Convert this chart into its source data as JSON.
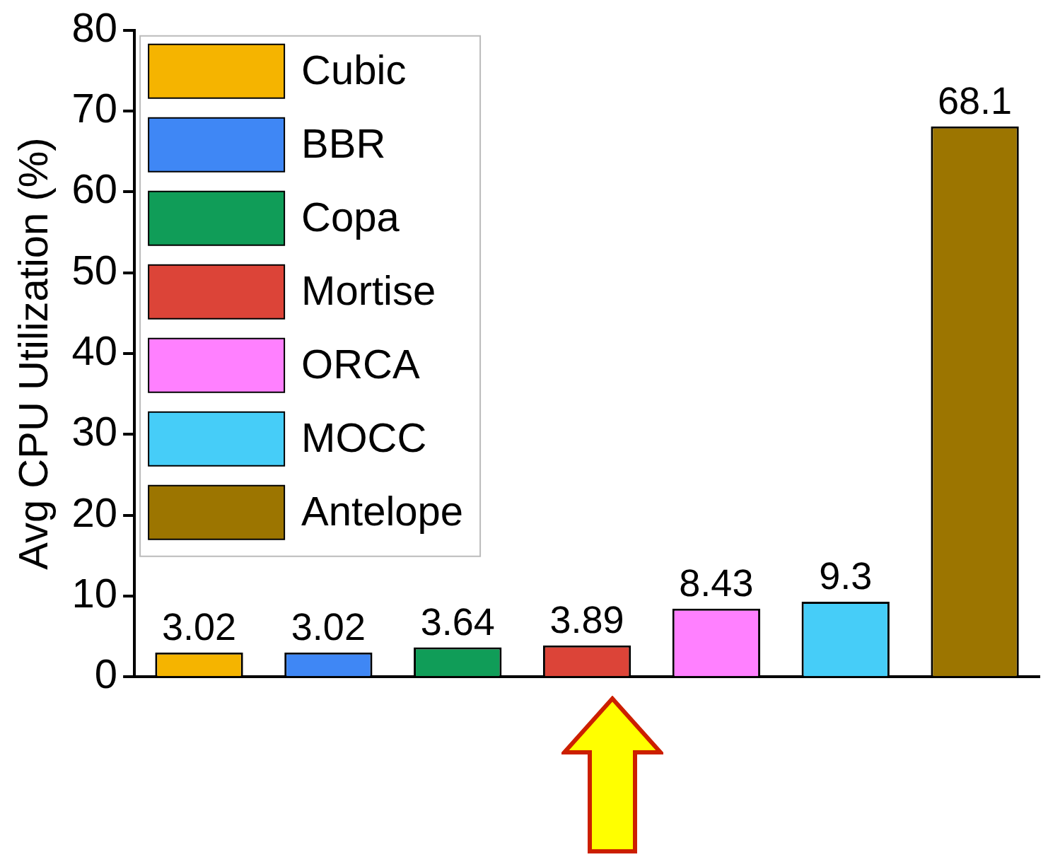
{
  "chart_data": {
    "type": "bar",
    "ylabel": "Avg CPU Utilization (%)",
    "categories": [
      null,
      null,
      null,
      null,
      null,
      null,
      null
    ],
    "series": [
      {
        "name": "Cubic",
        "color": "#f5b400",
        "values": [
          3.02,
          null,
          null,
          null,
          null,
          null,
          null
        ]
      },
      {
        "name": "BBR",
        "color": "#3f87f5",
        "values": [
          null,
          3.02,
          null,
          null,
          null,
          null,
          null
        ]
      },
      {
        "name": "Copa",
        "color": "#109d58",
        "values": [
          null,
          null,
          3.64,
          null,
          null,
          null,
          null
        ]
      },
      {
        "name": "Mortise",
        "color": "#dc4438",
        "values": [
          null,
          null,
          null,
          3.89,
          null,
          null,
          null
        ]
      },
      {
        "name": "ORCA",
        "color": "#ff80ff",
        "values": [
          null,
          null,
          null,
          null,
          8.43,
          null,
          null
        ]
      },
      {
        "name": "MOCC",
        "color": "#46cdf8",
        "values": [
          null,
          null,
          null,
          null,
          null,
          9.3,
          null
        ]
      },
      {
        "name": "Antelope",
        "color": "#9c7500",
        "values": [
          null,
          null,
          null,
          null,
          null,
          null,
          68.1
        ]
      }
    ],
    "ylim": [
      0,
      80
    ],
    "yticks": [
      0,
      10,
      20,
      30,
      40,
      50,
      60,
      70,
      80
    ],
    "data_labels": true,
    "legend": "top left",
    "grid": false,
    "tick_labels": "y"
  }
}
